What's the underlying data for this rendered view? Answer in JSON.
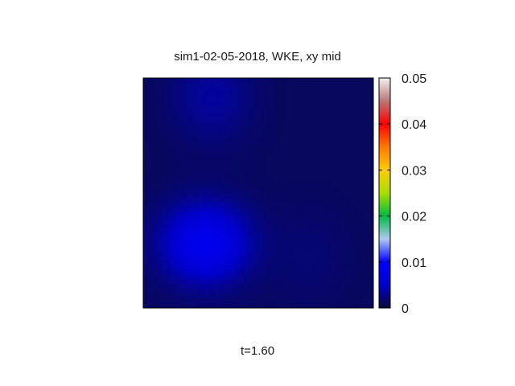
{
  "chart_data": {
    "type": "heatmap",
    "title": "sim1-02-05-2018, WKE, xy mid",
    "xlabel": "",
    "ylabel": "",
    "annotation": "t=1.60",
    "colorbar": {
      "range": [
        0,
        0.05
      ],
      "ticks": [
        0,
        0.01,
        0.02,
        0.03,
        0.04,
        0.05
      ],
      "tick_labels": [
        "0",
        "0.01",
        "0.02",
        "0.03",
        "0.04",
        "0.05"
      ],
      "colormap": [
        {
          "value": 0.0,
          "color": "#0a0a3a"
        },
        {
          "value": 0.005,
          "color": "#0000cc"
        },
        {
          "value": 0.01,
          "color": "#0000ff"
        },
        {
          "value": 0.015,
          "color": "#b0c8f0"
        },
        {
          "value": 0.02,
          "color": "#00bb44"
        },
        {
          "value": 0.025,
          "color": "#aadd00"
        },
        {
          "value": 0.03,
          "color": "#ffcc00"
        },
        {
          "value": 0.035,
          "color": "#ff7700"
        },
        {
          "value": 0.04,
          "color": "#ff0000"
        },
        {
          "value": 0.045,
          "color": "#bb7777"
        },
        {
          "value": 0.05,
          "color": "#f0f0f0"
        }
      ]
    },
    "field_blobs": [
      {
        "cx": 0.27,
        "cy": 0.28,
        "sx": 0.13,
        "sy": 0.12,
        "peak": 0.0072
      },
      {
        "cx": 0.3,
        "cy": 0.92,
        "sx": 0.12,
        "sy": 0.14,
        "peak": 0.0022
      },
      {
        "cx": 0.72,
        "cy": 0.22,
        "sx": 0.12,
        "sy": 0.14,
        "peak": 0.0008
      }
    ],
    "field_background": 0.0012,
    "grid": false,
    "legend": "colorbar-right"
  }
}
